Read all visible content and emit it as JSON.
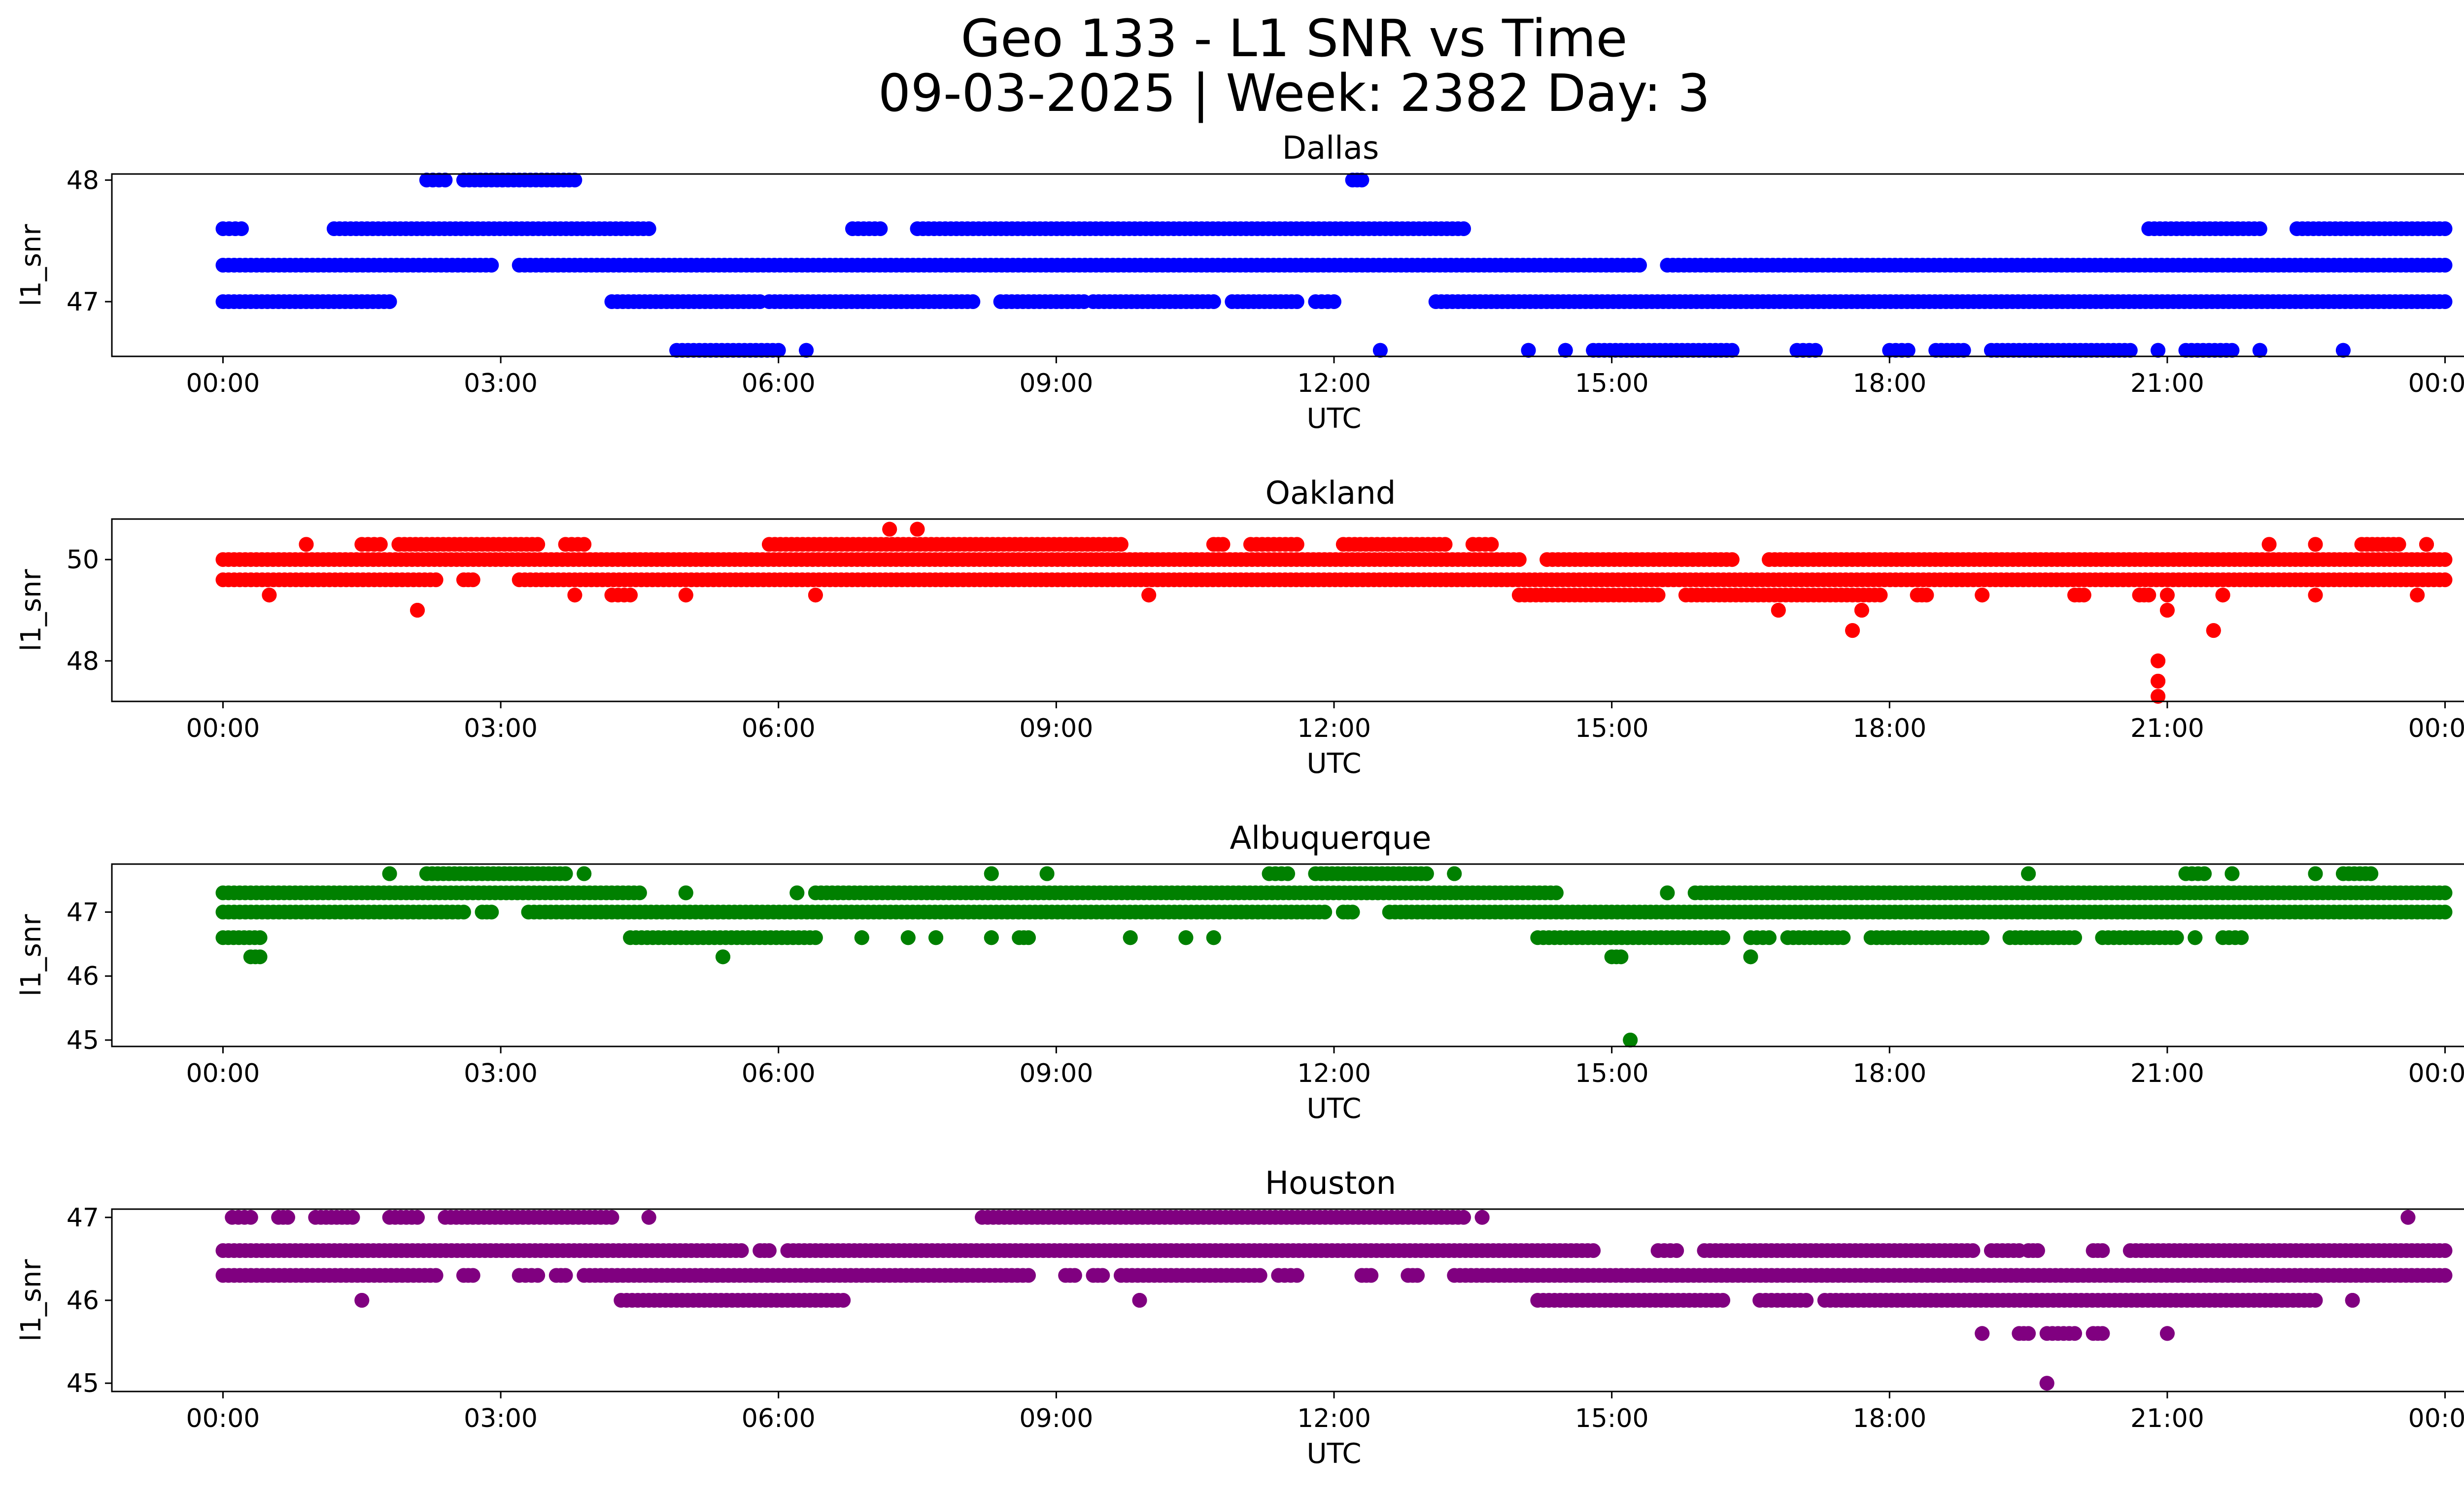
{
  "figure": {
    "title_line1": "Geo 133 - L1 SNR vs Time",
    "title_line2": "09-03-2025 | Week: 2382 Day: 3"
  },
  "chart_data": [
    {
      "type": "scatter",
      "title": "Dallas",
      "xlabel": "UTC",
      "ylabel": "l1_snr",
      "color": "#0000ff",
      "xlim_hours": [
        -1.2,
        25.2
      ],
      "ylim": [
        46.55,
        48.05
      ],
      "xticks": [
        "00:00",
        "03:00",
        "06:00",
        "09:00",
        "12:00",
        "15:00",
        "18:00",
        "21:00",
        "00:00"
      ],
      "yticks": [
        47,
        48
      ],
      "series": [
        {
          "y": 47.0,
          "ranges": [
            [
              0,
              1.8
            ],
            [
              4.2,
              5.8
            ],
            [
              5.9,
              8.1
            ],
            [
              8.4,
              9.3
            ],
            [
              9.4,
              10.7
            ],
            [
              10.9,
              11.6
            ],
            [
              11.8,
              12.0
            ],
            [
              13.1,
              24.0
            ]
          ]
        },
        {
          "y": 47.3,
          "ranges": [
            [
              0,
              2.9
            ],
            [
              3.2,
              15.3
            ],
            [
              15.6,
              24.0
            ]
          ]
        },
        {
          "y": 47.6,
          "ranges": [
            [
              0,
              0.2
            ],
            [
              1.2,
              4.6
            ],
            [
              6.8,
              7.1
            ],
            [
              7.5,
              13.4
            ],
            [
              20.8,
              22.0
            ],
            [
              22.4,
              24.0
            ]
          ]
        },
        {
          "y": 48.0,
          "ranges": [
            [
              2.2,
              2.4
            ],
            [
              2.6,
              3.8
            ],
            [
              12.2,
              12.3
            ]
          ]
        },
        {
          "y": 46.6,
          "ranges": [
            [
              4.9,
              6.0
            ],
            [
              6.3,
              6.3
            ],
            [
              12.5,
              12.5
            ],
            [
              14.1,
              14.1
            ],
            [
              14.5,
              14.5
            ],
            [
              14.8,
              16.3
            ],
            [
              17.0,
              17.2
            ],
            [
              18.0,
              18.2
            ],
            [
              18.5,
              18.8
            ],
            [
              19.1,
              20.6
            ],
            [
              20.9,
              20.9
            ],
            [
              21.2,
              21.7
            ],
            [
              22.0,
              22.0
            ],
            [
              22.9,
              22.9
            ]
          ]
        }
      ]
    },
    {
      "type": "scatter",
      "title": "Oakland",
      "xlabel": "UTC",
      "ylabel": "l1_snr",
      "color": "#ff0000",
      "xlim_hours": [
        -1.2,
        25.2
      ],
      "ylim": [
        47.2,
        50.8
      ],
      "xticks": [
        "00:00",
        "03:00",
        "06:00",
        "09:00",
        "12:00",
        "15:00",
        "18:00",
        "21:00",
        "00:00"
      ],
      "yticks": [
        48,
        50
      ],
      "series": [
        {
          "y": 50.0,
          "ranges": [
            [
              0,
              14.0
            ],
            [
              14.3,
              16.3
            ],
            [
              16.7,
              24.0
            ]
          ]
        },
        {
          "y": 49.6,
          "ranges": [
            [
              0,
              2.3
            ],
            [
              2.6,
              2.7
            ],
            [
              3.2,
              24.0
            ]
          ]
        },
        {
          "y": 50.3,
          "ranges": [
            [
              0.9,
              0.9
            ],
            [
              1.5,
              1.7
            ],
            [
              1.9,
              3.4
            ],
            [
              3.7,
              3.9
            ],
            [
              5.9,
              9.7
            ],
            [
              10.7,
              10.8
            ],
            [
              11.1,
              11.6
            ],
            [
              12.1,
              13.2
            ],
            [
              13.5,
              13.7
            ],
            [
              22.1,
              22.1
            ],
            [
              22.6,
              22.6
            ],
            [
              23.1,
              23.5
            ],
            [
              23.8,
              23.8
            ]
          ]
        },
        {
          "y": 49.3,
          "ranges": [
            [
              0.5,
              0.5
            ],
            [
              3.8,
              3.8
            ],
            [
              4.2,
              4.4
            ],
            [
              5.0,
              5.0
            ],
            [
              6.4,
              6.4
            ],
            [
              10.0,
              10.0
            ],
            [
              14.0,
              15.5
            ],
            [
              15.8,
              17.9
            ],
            [
              18.3,
              18.4
            ],
            [
              19.0,
              19.0
            ],
            [
              20.0,
              20.1
            ],
            [
              20.7,
              20.8
            ],
            [
              21.0,
              21.0
            ],
            [
              21.6,
              21.6
            ],
            [
              22.6,
              22.6
            ],
            [
              23.7,
              23.7
            ]
          ]
        },
        {
          "y": 49.0,
          "ranges": [
            [
              2.1,
              2.1
            ],
            [
              16.8,
              16.8
            ],
            [
              17.7,
              17.7
            ],
            [
              21.0,
              21.0
            ]
          ]
        },
        {
          "y": 50.6,
          "ranges": [
            [
              7.2,
              7.2
            ],
            [
              7.5,
              7.5
            ]
          ]
        },
        {
          "y": 48.6,
          "ranges": [
            [
              17.6,
              17.6
            ],
            [
              21.5,
              21.5
            ]
          ]
        },
        {
          "y": 48.0,
          "ranges": [
            [
              20.9,
              20.9
            ]
          ]
        },
        {
          "y": 47.6,
          "ranges": [
            [
              20.9,
              20.9
            ]
          ]
        },
        {
          "y": 47.3,
          "ranges": [
            [
              20.9,
              20.9
            ]
          ]
        }
      ]
    },
    {
      "type": "scatter",
      "title": "Albuquerque",
      "xlabel": "UTC",
      "ylabel": "l1_snr",
      "color": "#008000",
      "xlim_hours": [
        -1.2,
        25.2
      ],
      "ylim": [
        44.9,
        47.75
      ],
      "xticks": [
        "00:00",
        "03:00",
        "06:00",
        "09:00",
        "12:00",
        "15:00",
        "18:00",
        "21:00",
        "00:00"
      ],
      "yticks": [
        45,
        46,
        47
      ],
      "series": [
        {
          "y": 47.3,
          "ranges": [
            [
              0,
              4.5
            ],
            [
              5.0,
              5.0
            ],
            [
              6.2,
              6.2
            ],
            [
              6.4,
              14.4
            ],
            [
              15.6,
              15.6
            ],
            [
              15.9,
              24.0
            ]
          ]
        },
        {
          "y": 47.0,
          "ranges": [
            [
              0,
              2.6
            ],
            [
              2.8,
              2.9
            ],
            [
              3.3,
              11.9
            ],
            [
              12.1,
              12.2
            ],
            [
              12.6,
              24.0
            ]
          ]
        },
        {
          "y": 47.6,
          "ranges": [
            [
              1.8,
              1.8
            ],
            [
              2.2,
              3.7
            ],
            [
              3.9,
              3.9
            ],
            [
              8.3,
              8.3
            ],
            [
              8.9,
              8.9
            ],
            [
              11.3,
              11.5
            ],
            [
              11.8,
              13.0
            ],
            [
              13.3,
              13.3
            ],
            [
              19.5,
              19.5
            ],
            [
              21.2,
              21.4
            ],
            [
              21.7,
              21.7
            ],
            [
              22.6,
              22.6
            ],
            [
              22.9,
              23.2
            ]
          ]
        },
        {
          "y": 46.6,
          "ranges": [
            [
              0,
              0.4
            ],
            [
              4.4,
              6.4
            ],
            [
              6.9,
              6.9
            ],
            [
              7.4,
              7.4
            ],
            [
              7.7,
              7.7
            ],
            [
              8.3,
              8.3
            ],
            [
              8.6,
              8.7
            ],
            [
              9.8,
              9.8
            ],
            [
              10.4,
              10.4
            ],
            [
              10.7,
              10.7
            ],
            [
              14.2,
              16.2
            ],
            [
              16.5,
              16.7
            ],
            [
              16.9,
              17.5
            ],
            [
              17.8,
              19.0
            ],
            [
              19.3,
              20.0
            ],
            [
              20.3,
              21.1
            ],
            [
              21.3,
              21.3
            ],
            [
              21.6,
              21.8
            ]
          ]
        },
        {
          "y": 46.3,
          "ranges": [
            [
              0.3,
              0.4
            ],
            [
              5.4,
              5.4
            ],
            [
              15.0,
              15.1
            ],
            [
              16.5,
              16.5
            ]
          ]
        },
        {
          "y": 45.0,
          "ranges": [
            [
              15.2,
              15.2
            ]
          ]
        }
      ]
    },
    {
      "type": "scatter",
      "title": "Houston",
      "xlabel": "UTC",
      "ylabel": "l1_snr",
      "color": "#800080",
      "xlim_hours": [
        -1.2,
        25.2
      ],
      "ylim": [
        44.9,
        47.1
      ],
      "xticks": [
        "00:00",
        "03:00",
        "06:00",
        "09:00",
        "12:00",
        "15:00",
        "18:00",
        "21:00",
        "00:00"
      ],
      "yticks": [
        45,
        46,
        47
      ],
      "series": [
        {
          "y": 46.6,
          "ranges": [
            [
              0,
              5.6
            ],
            [
              5.8,
              5.9
            ],
            [
              6.1,
              14.8
            ],
            [
              15.5,
              15.7
            ],
            [
              16.0,
              18.9
            ],
            [
              19.1,
              19.4
            ],
            [
              19.5,
              19.6
            ],
            [
              20.2,
              20.3
            ],
            [
              20.6,
              24.0
            ]
          ]
        },
        {
          "y": 46.3,
          "ranges": [
            [
              0,
              2.3
            ],
            [
              2.6,
              2.7
            ],
            [
              3.2,
              3.4
            ],
            [
              3.6,
              3.7
            ],
            [
              3.9,
              8.7
            ],
            [
              9.1,
              9.2
            ],
            [
              9.4,
              9.5
            ],
            [
              9.7,
              11.2
            ],
            [
              11.4,
              11.6
            ],
            [
              12.3,
              12.4
            ],
            [
              12.8,
              12.9
            ],
            [
              13.3,
              24.0
            ]
          ]
        },
        {
          "y": 47.0,
          "ranges": [
            [
              0.1,
              0.3
            ],
            [
              0.6,
              0.7
            ],
            [
              1.0,
              1.4
            ],
            [
              1.8,
              2.1
            ],
            [
              2.4,
              4.2
            ],
            [
              4.6,
              4.6
            ],
            [
              8.2,
              13.4
            ],
            [
              13.6,
              13.6
            ],
            [
              23.6,
              23.6
            ]
          ]
        },
        {
          "y": 46.0,
          "ranges": [
            [
              1.5,
              1.5
            ],
            [
              4.3,
              6.7
            ],
            [
              9.9,
              9.9
            ],
            [
              14.2,
              16.2
            ],
            [
              16.6,
              17.1
            ],
            [
              17.3,
              22.6
            ],
            [
              23.0,
              23.0
            ]
          ]
        },
        {
          "y": 45.6,
          "ranges": [
            [
              19.0,
              19.0
            ],
            [
              19.4,
              19.5
            ],
            [
              19.7,
              20.0
            ],
            [
              20.2,
              20.3
            ],
            [
              21.0,
              21.0
            ]
          ]
        },
        {
          "y": 45.0,
          "ranges": [
            [
              19.7,
              19.7
            ]
          ]
        }
      ]
    }
  ]
}
